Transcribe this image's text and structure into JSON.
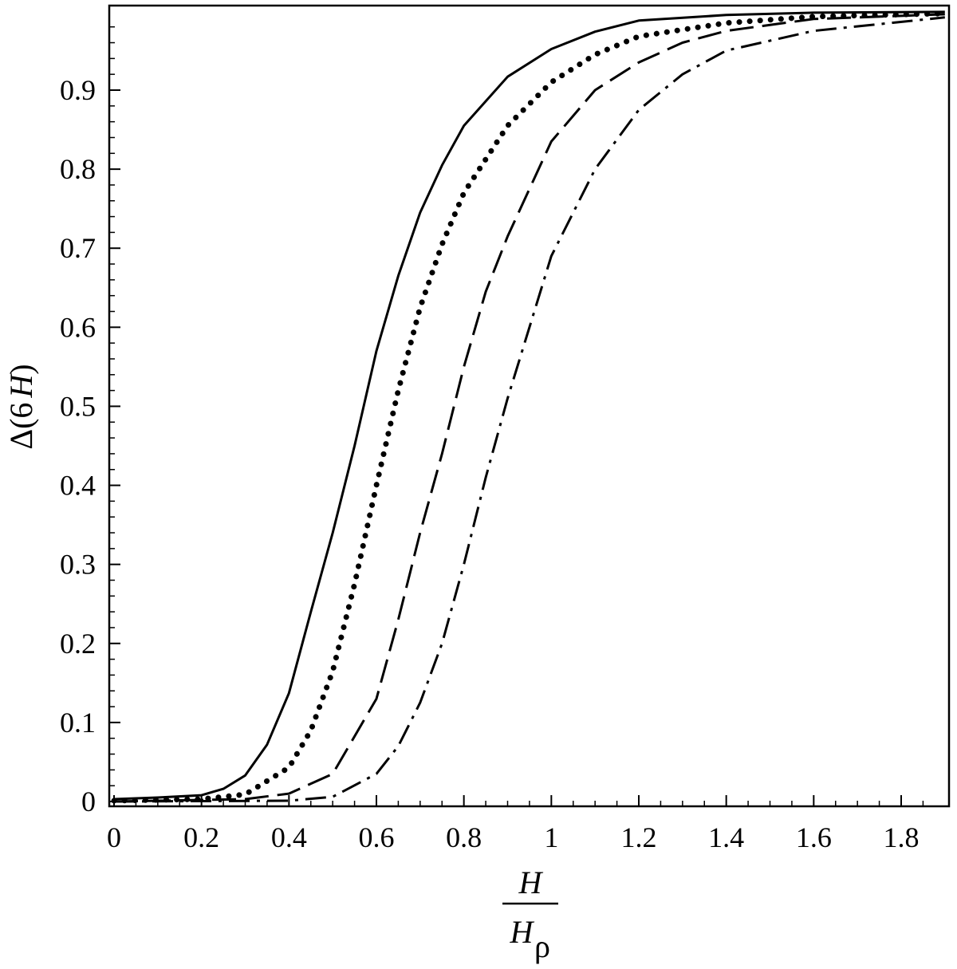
{
  "chart_data": {
    "type": "line",
    "title": "",
    "xlabel": {
      "numerator": "H",
      "denominator": "H",
      "denominator_subscript": "ρ"
    },
    "ylabel": {
      "prefix": "Δ(6",
      "variable": "H",
      "suffix": ")"
    },
    "xlim": [
      0,
      1.9
    ],
    "ylim": [
      0,
      1.0
    ],
    "x_ticks": [
      0,
      0.2,
      0.4,
      0.6,
      0.8,
      1,
      1.2,
      1.4,
      1.6,
      1.8
    ],
    "x_tick_labels": [
      "0",
      "0.2",
      "0.4",
      "0.6",
      "0.8",
      "1",
      "1.2",
      "1.4",
      "1.6",
      "1.8"
    ],
    "y_ticks": [
      0,
      0.1,
      0.2,
      0.3,
      0.4,
      0.5,
      0.6,
      0.7,
      0.8,
      0.9
    ],
    "y_tick_labels": [
      "0",
      "0.1",
      "0.2",
      "0.3",
      "0.4",
      "0.5",
      "0.6",
      "0.7",
      "0.8",
      "0.9"
    ],
    "grid": false,
    "legend": "none",
    "series": [
      {
        "style": "solid",
        "x": [
          0,
          0.1,
          0.2,
          0.25,
          0.3,
          0.35,
          0.4,
          0.45,
          0.5,
          0.55,
          0.6,
          0.65,
          0.7,
          0.75,
          0.8,
          0.9,
          1.0,
          1.1,
          1.2,
          1.4,
          1.6,
          1.9
        ],
        "y": [
          0.003,
          0.005,
          0.008,
          0.016,
          0.033,
          0.072,
          0.137,
          0.24,
          0.34,
          0.45,
          0.57,
          0.665,
          0.745,
          0.805,
          0.855,
          0.917,
          0.952,
          0.974,
          0.988,
          0.995,
          0.998,
          0.999
        ]
      },
      {
        "style": "dotted",
        "x": [
          0,
          0.2,
          0.3,
          0.4,
          0.45,
          0.5,
          0.55,
          0.6,
          0.65,
          0.7,
          0.75,
          0.8,
          0.9,
          1.0,
          1.1,
          1.2,
          1.4,
          1.6,
          1.9
        ],
        "y": [
          0.001,
          0.003,
          0.009,
          0.043,
          0.09,
          0.165,
          0.275,
          0.4,
          0.52,
          0.625,
          0.705,
          0.77,
          0.855,
          0.91,
          0.945,
          0.968,
          0.985,
          0.993,
          0.997
        ]
      },
      {
        "style": "dashed",
        "x": [
          0,
          0.3,
          0.4,
          0.5,
          0.6,
          0.65,
          0.7,
          0.75,
          0.8,
          0.85,
          0.9,
          1.0,
          1.1,
          1.2,
          1.3,
          1.4,
          1.6,
          1.9
        ],
        "y": [
          0.0,
          0.003,
          0.01,
          0.035,
          0.13,
          0.23,
          0.34,
          0.44,
          0.55,
          0.645,
          0.715,
          0.835,
          0.9,
          0.935,
          0.96,
          0.975,
          0.99,
          0.996
        ]
      },
      {
        "style": "dashdot",
        "x": [
          0,
          0.4,
          0.5,
          0.6,
          0.65,
          0.7,
          0.75,
          0.8,
          0.85,
          0.9,
          0.95,
          1.0,
          1.1,
          1.2,
          1.3,
          1.4,
          1.6,
          1.9
        ],
        "y": [
          0.0,
          0.001,
          0.006,
          0.035,
          0.07,
          0.125,
          0.2,
          0.3,
          0.41,
          0.51,
          0.6,
          0.69,
          0.8,
          0.875,
          0.92,
          0.95,
          0.975,
          0.992
        ]
      }
    ]
  }
}
